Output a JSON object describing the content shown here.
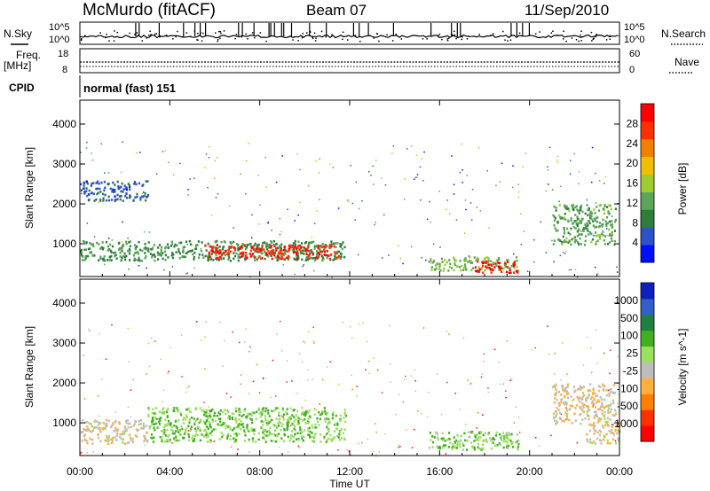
{
  "header": {
    "station": "McMurdo (fitACF)",
    "beam": "Beam 07",
    "date": "11/Sep/2010"
  },
  "top_panels": {
    "nsky_label": "N.Sky",
    "nsky_ticks": [
      "10^5",
      "10^0"
    ],
    "nsearch_label": "N.Search",
    "nsearch_ticks": [
      "10^5",
      "10^0"
    ],
    "freq_label_line1": "Freq.",
    "freq_label_line2": "[MHz]",
    "freq_ticks": [
      "18",
      "8"
    ],
    "nave_label": "Nave",
    "nave_ticks": [
      "60",
      "0"
    ],
    "cpid_label": "CPID",
    "cpid_value": "normal (fast) 151"
  },
  "colors": {
    "power": [
      "#0010ff",
      "#2e52c8",
      "#2e7d3a",
      "#5aa55a",
      "#9ccc30",
      "#f0c000",
      "#f08000",
      "#ff3000",
      "#ff0000"
    ],
    "velocity": [
      "#ff0000",
      "#ff3000",
      "#ff8000",
      "#ffb040",
      "#bdbdbd",
      "#9be060",
      "#40b020",
      "#208040",
      "#3060c8",
      "#1020c0"
    ]
  },
  "chart_data": [
    {
      "type": "heatmap",
      "name": "power",
      "ylabel": "Slant Range [km]",
      "xlabel": "Time UT",
      "xticks": [
        "00:00",
        "04:00",
        "08:00",
        "12:00",
        "16:00",
        "20:00",
        "00:00"
      ],
      "xlim": [
        0,
        24
      ],
      "ylim": [
        180,
        4600
      ],
      "yticks": [
        1000,
        2000,
        3000,
        4000
      ],
      "colorbar_label": "Power [dB]",
      "colorbar_ticks": [
        "28",
        "24",
        "20",
        "16",
        "12",
        "8",
        "4"
      ],
      "colorbar_range": [
        0,
        32
      ],
      "regions": [
        {
          "t0": 0.0,
          "t1": 11.8,
          "r_lo": 600,
          "r_hi": 1100,
          "value": 10
        },
        {
          "t0": 5.5,
          "t1": 11.5,
          "r_lo": 650,
          "r_hi": 1000,
          "value": 28
        },
        {
          "t0": 15.5,
          "t1": 19.5,
          "r_lo": 350,
          "r_hi": 700,
          "value": 14
        },
        {
          "t0": 17.5,
          "t1": 19.5,
          "r_lo": 300,
          "r_hi": 600,
          "value": 30
        },
        {
          "t0": 21.0,
          "t1": 23.8,
          "r_lo": 1000,
          "r_hi": 2000,
          "value": 12
        },
        {
          "t0": 0.0,
          "t1": 3.0,
          "r_lo": 2100,
          "r_hi": 2600,
          "value": 6
        }
      ]
    },
    {
      "type": "heatmap",
      "name": "velocity",
      "ylabel": "Slant Range [km]",
      "xlabel": "Time UT",
      "xticks": [
        "00:00",
        "04:00",
        "08:00",
        "12:00",
        "16:00",
        "20:00",
        "00:00"
      ],
      "xlim": [
        0,
        24
      ],
      "ylim": [
        180,
        4600
      ],
      "yticks": [
        1000,
        2000,
        3000,
        4000
      ],
      "colorbar_label": "Velocity [m s^-1]",
      "colorbar_ticks": [
        "1000",
        "500",
        "100",
        "25",
        "-25",
        "-100",
        "-500",
        "-1000"
      ],
      "colorbar_range": [
        -1000,
        1000
      ],
      "regions": [
        {
          "t0": 0.0,
          "t1": 3.0,
          "r_lo": 500,
          "r_hi": 1100,
          "value": -150
        },
        {
          "t0": 3.0,
          "t1": 11.8,
          "r_lo": 550,
          "r_hi": 1400,
          "value": 200
        },
        {
          "t0": 15.5,
          "t1": 19.5,
          "r_lo": 350,
          "r_hi": 800,
          "value": 150
        },
        {
          "t0": 21.0,
          "t1": 23.8,
          "r_lo": 1000,
          "r_hi": 2000,
          "value": -150
        },
        {
          "t0": 22.5,
          "t1": 24.0,
          "r_lo": 500,
          "r_hi": 1000,
          "value": -150
        }
      ]
    }
  ]
}
